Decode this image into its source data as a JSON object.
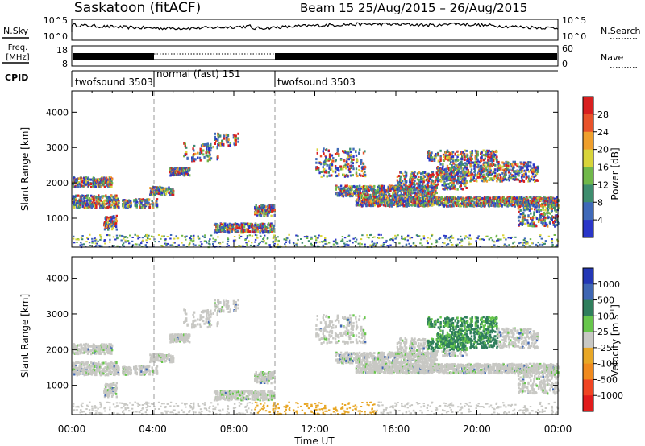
{
  "header": {
    "station": "Saskatoon (fitACF)",
    "beam_info": "Beam 15 25/Aug/2015 – 26/Aug/2015"
  },
  "top_panels": {
    "nsky_label": "N.Sky",
    "nsearch_label": "N.Search",
    "noise_left_ticks": [
      "10^5",
      "10^0"
    ],
    "noise_right_ticks": [
      "10^5",
      "10^0"
    ],
    "freq_label": "Freq.",
    "freq_unit": "[MHz]",
    "freq_ticks": [
      "18",
      "8"
    ],
    "nave_label": "Nave",
    "nave_ticks": [
      "60",
      "0"
    ],
    "cpid_label": "CPID",
    "cpid_segments": [
      {
        "start": 0,
        "end": 4,
        "label": "twofsound 3503"
      },
      {
        "start": 4,
        "end": 10,
        "label": "normal (fast) 151"
      },
      {
        "start": 10,
        "end": 24,
        "label": "twofsound 3503"
      }
    ]
  },
  "chart_data": [
    {
      "type": "heatmap",
      "parameter": "Power",
      "ylabel": "Slant Range [km]",
      "xlabel": "Time UT",
      "xlim": [
        0,
        24
      ],
      "ylim": [
        180,
        4600
      ],
      "x_ticks": [
        "00:00",
        "04:00",
        "08:00",
        "12:00",
        "16:00",
        "20:00",
        "00:00"
      ],
      "y_ticks": [
        1000,
        2000,
        3000,
        4000
      ],
      "colorbar": {
        "label": "Power [dB]",
        "ticks": [
          "4",
          "8",
          "12",
          "16",
          "20",
          "24",
          "28"
        ],
        "colors": [
          "#2a36c8",
          "#3f69b8",
          "#3e8d6e",
          "#70b84a",
          "#d8d43a",
          "#ef9f2c",
          "#e8522a",
          "#d81f1f"
        ]
      },
      "cpid_boundaries": [
        4,
        10
      ]
    },
    {
      "type": "heatmap",
      "parameter": "Velocity",
      "ylabel": "Slant Range [km]",
      "xlabel": "Time UT",
      "xlim": [
        0,
        24
      ],
      "ylim": [
        180,
        4600
      ],
      "x_ticks": [
        "00:00",
        "04:00",
        "08:00",
        "12:00",
        "16:00",
        "20:00",
        "00:00"
      ],
      "y_ticks": [
        1000,
        2000,
        3000,
        4000
      ],
      "colorbar": {
        "label": "Velocity [m s^-1]",
        "ticks": [
          "1000",
          "500",
          "100",
          "25",
          "-25",
          "-100",
          "-500",
          "-1000"
        ],
        "colors": [
          "#2337b5",
          "#3f66b3",
          "#2f7e5c",
          "#67c64b",
          "#c8c8c4",
          "#e8a726",
          "#f08a1e",
          "#f04422",
          "#e11b1b"
        ]
      },
      "cpid_boundaries": [
        4,
        10
      ]
    }
  ]
}
